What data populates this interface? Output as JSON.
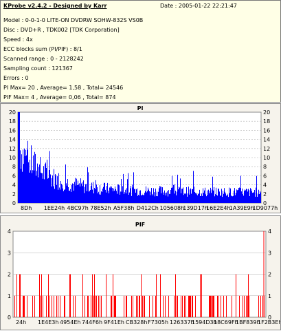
{
  "info": {
    "title": "KProbe v2.4.2 - Designed by Karr",
    "date": "Date : 2005-01-22 22:21:47",
    "lines": [
      "Model : 0-0-1-0 LITE-ON DVDRW SOHW-832S  VS0B",
      "Disc : DVD+R , TDK002 [TDK Corporation]",
      "Speed : 4x",
      "ECC blocks sum (PI/PIF) : 8/1",
      "Scanned range : 0 - 2128242",
      "Sampling count : 121367",
      "Errors : 0",
      "PI Max= 20 , Average= 1,58 , Total= 24546",
      "PIF Max= 4 , Average= 0,06 , Total= 874"
    ]
  },
  "chart_data": [
    {
      "type": "bar",
      "title": "PI",
      "x_ticks": [
        "8Dh",
        "1EE24h",
        "4BC97h",
        "78E52h",
        "A5F38h",
        "D412Ch",
        "105608h",
        "139D17h",
        "16E2E4h",
        "1A39E9h",
        "1D9077h"
      ],
      "y_ticks": [
        0,
        2,
        4,
        6,
        8,
        10,
        12,
        14,
        16,
        18,
        20
      ],
      "ylim": [
        0,
        20
      ],
      "bar_color": "#0000ff",
      "y_max": 20,
      "y_average": 1.58,
      "note": "dense PI error bars; high near start (up to 20), decaying to ~2-4 with scattered spikes"
    },
    {
      "type": "bar",
      "title": "PIF",
      "x_ticks": [
        "24h",
        "1E4E3h",
        "4954Eh",
        "744F6h",
        "9F41Eh",
        "CB328h",
        "F7305h",
        "126337h",
        "1594D3h",
        "18C69Fh",
        "1BF839h",
        "1F2B3Eh"
      ],
      "y_ticks": [
        0,
        1,
        2,
        3,
        4
      ],
      "ylim": [
        0,
        4
      ],
      "bar_color": "#ff0000",
      "y_max": 4,
      "y_average": 0.06,
      "note": "sparse PIF error bars, mostly 1, some 2, one 4 at end"
    }
  ]
}
